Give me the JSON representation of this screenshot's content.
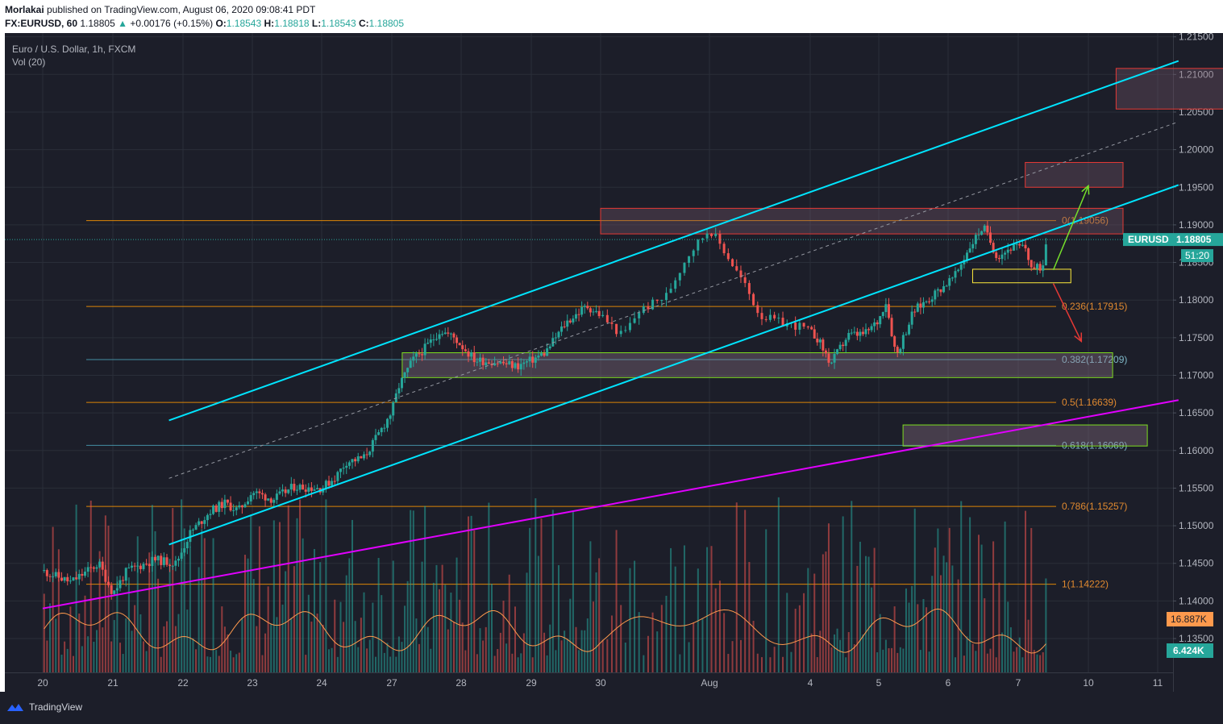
{
  "header": {
    "author": "Morlakai",
    "published": "published on TradingView.com, August 06, 2020 09:08:41 PDT",
    "symbol": "FX:EURUSD, 60",
    "last": "1.18805",
    "change": "+0.00176 (+0.15%)",
    "o_label": "O:",
    "o": "1.18543",
    "h_label": "H:",
    "h": "1.18818",
    "l_label": "L:",
    "l": "1.18543",
    "c_label": "C:",
    "c": "1.18805"
  },
  "legend": {
    "title": "Euro / U.S. Dollar, 1h, FXCM",
    "volume": "Vol (20)"
  },
  "badges": {
    "symbol": "EURUSD",
    "price": "1.18805",
    "timer": "51:20",
    "vol_ma": "16.887K",
    "vol": "6.424K"
  },
  "footer": {
    "brand": "TradingView"
  },
  "colors": {
    "background": "#1c1e29",
    "up": "#26a69a",
    "down": "#ef5350",
    "channel": "#00e5ff",
    "trendline": "#e100ff",
    "fib": "#ff9800",
    "fib_blue": "#4aa3b8"
  },
  "chart_data": {
    "type": "candlestick",
    "instrument": "EURUSD",
    "timeframe": "1h",
    "ylim": [
      1.1305,
      1.2155
    ],
    "x_ticks": [
      "20",
      "21",
      "22",
      "23",
      "24",
      "27",
      "28",
      "29",
      "30",
      "Aug",
      "4",
      "5",
      "6",
      "7",
      "10",
      "11"
    ],
    "y_ticks": [
      "1.13500",
      "1.14000",
      "1.14500",
      "1.15000",
      "1.15500",
      "1.16000",
      "1.16500",
      "1.17000",
      "1.17500",
      "1.18000",
      "1.18500",
      "1.19000",
      "1.19500",
      "1.20000",
      "1.20500",
      "1.21000",
      "1.21500"
    ],
    "price_path": [
      [
        0,
        1.144
      ],
      [
        0.4,
        1.1425
      ],
      [
        0.8,
        1.145
      ],
      [
        1.0,
        1.141
      ],
      [
        1.2,
        1.144
      ],
      [
        1.6,
        1.1455
      ],
      [
        1.9,
        1.145
      ],
      [
        2.1,
        1.149
      ],
      [
        2.4,
        1.152
      ],
      [
        2.6,
        1.153
      ],
      [
        2.8,
        1.152
      ],
      [
        3.0,
        1.1545
      ],
      [
        3.3,
        1.1535
      ],
      [
        3.6,
        1.1552
      ],
      [
        4.0,
        1.155
      ],
      [
        4.2,
        1.1565
      ],
      [
        4.35,
        1.1585
      ],
      [
        4.6,
        1.159
      ],
      [
        4.8,
        1.162
      ],
      [
        5.0,
        1.1652
      ],
      [
        5.1,
        1.1685
      ],
      [
        5.3,
        1.172
      ],
      [
        5.5,
        1.1738
      ],
      [
        5.7,
        1.176
      ],
      [
        5.9,
        1.175
      ],
      [
        6.2,
        1.172
      ],
      [
        6.5,
        1.1718
      ],
      [
        6.8,
        1.1712
      ],
      [
        7.0,
        1.172
      ],
      [
        7.2,
        1.173
      ],
      [
        7.5,
        1.177
      ],
      [
        7.8,
        1.1792
      ],
      [
        8.0,
        1.178
      ],
      [
        8.2,
        1.1752
      ],
      [
        8.35,
        1.1785
      ],
      [
        8.6,
        1.1805
      ],
      [
        8.8,
        1.186
      ],
      [
        9.0,
        1.1895
      ],
      [
        9.15,
        1.1865
      ],
      [
        9.35,
        1.182
      ],
      [
        9.5,
        1.178
      ],
      [
        9.7,
        1.177
      ],
      [
        9.9,
        1.1765
      ],
      [
        10.1,
        1.175
      ],
      [
        10.3,
        1.1715
      ],
      [
        10.55,
        1.1753
      ],
      [
        10.8,
        1.1755
      ],
      [
        11.0,
        1.1773
      ],
      [
        11.1,
        1.18
      ],
      [
        11.25,
        1.1726
      ],
      [
        11.5,
        1.1785
      ],
      [
        11.8,
        1.1808
      ],
      [
        12.1,
        1.1832
      ],
      [
        12.3,
        1.187
      ],
      [
        12.5,
        1.1898
      ],
      [
        12.7,
        1.1858
      ],
      [
        12.9,
        1.187
      ],
      [
        13.1,
        1.187
      ],
      [
        13.2,
        1.184
      ],
      [
        13.35,
        1.1845
      ],
      [
        13.4,
        1.1881
      ]
    ],
    "volume": {
      "ma_label": "16.887K",
      "last": "6.424K"
    },
    "fibonacci": [
      {
        "label": "0(1.19056)",
        "value": 1.19056
      },
      {
        "label": "0.236(1.17915)",
        "value": 1.17915
      },
      {
        "label": "0.382(1.17209)",
        "value": 1.17209
      },
      {
        "label": "0.5(1.16639)",
        "value": 1.16639
      },
      {
        "label": "0.618(1.16069)",
        "value": 1.16069
      },
      {
        "label": "0.786(1.15257)",
        "value": 1.15257
      },
      {
        "label": "1(1.14222)",
        "value": 1.14222
      }
    ],
    "zones": [
      {
        "kind": "resistance",
        "x0": 14.4,
        "x1": 16.65,
        "y0": 1.2054,
        "y1": 1.2108
      },
      {
        "kind": "resistance",
        "x0": 13.1,
        "x1": 14.5,
        "y0": 1.195,
        "y1": 1.1983
      },
      {
        "kind": "resistance",
        "x0": 8.0,
        "x1": 14.5,
        "y0": 1.1888,
        "y1": 1.1922
      },
      {
        "kind": "support",
        "x0": 5.15,
        "x1": 14.35,
        "y0": 1.1697,
        "y1": 1.173
      },
      {
        "kind": "support",
        "x0": 11.35,
        "x1": 14.85,
        "y0": 1.1606,
        "y1": 1.1634
      },
      {
        "kind": "pivot",
        "x0": 12.35,
        "x1": 13.75,
        "y0": 1.1823,
        "y1": 1.1841
      }
    ],
    "channel": {
      "upper": [
        [
          1.8,
          1.164
        ],
        [
          15.3,
          1.2118
        ]
      ],
      "middle": [
        [
          1.8,
          1.1563
        ],
        [
          15.3,
          1.2037
        ]
      ],
      "lower": [
        [
          1.8,
          1.1475
        ],
        [
          15.3,
          1.1953
        ]
      ]
    },
    "trendline": [
      [
        0,
        1.139
      ],
      [
        15.3,
        1.1667
      ]
    ],
    "arrows": [
      {
        "direction": "up",
        "from": [
          13.5,
          1.184
        ],
        "to": [
          14.0,
          1.1952
        ]
      },
      {
        "direction": "down",
        "from": [
          13.5,
          1.1822
        ],
        "to": [
          13.9,
          1.1745
        ]
      }
    ]
  }
}
